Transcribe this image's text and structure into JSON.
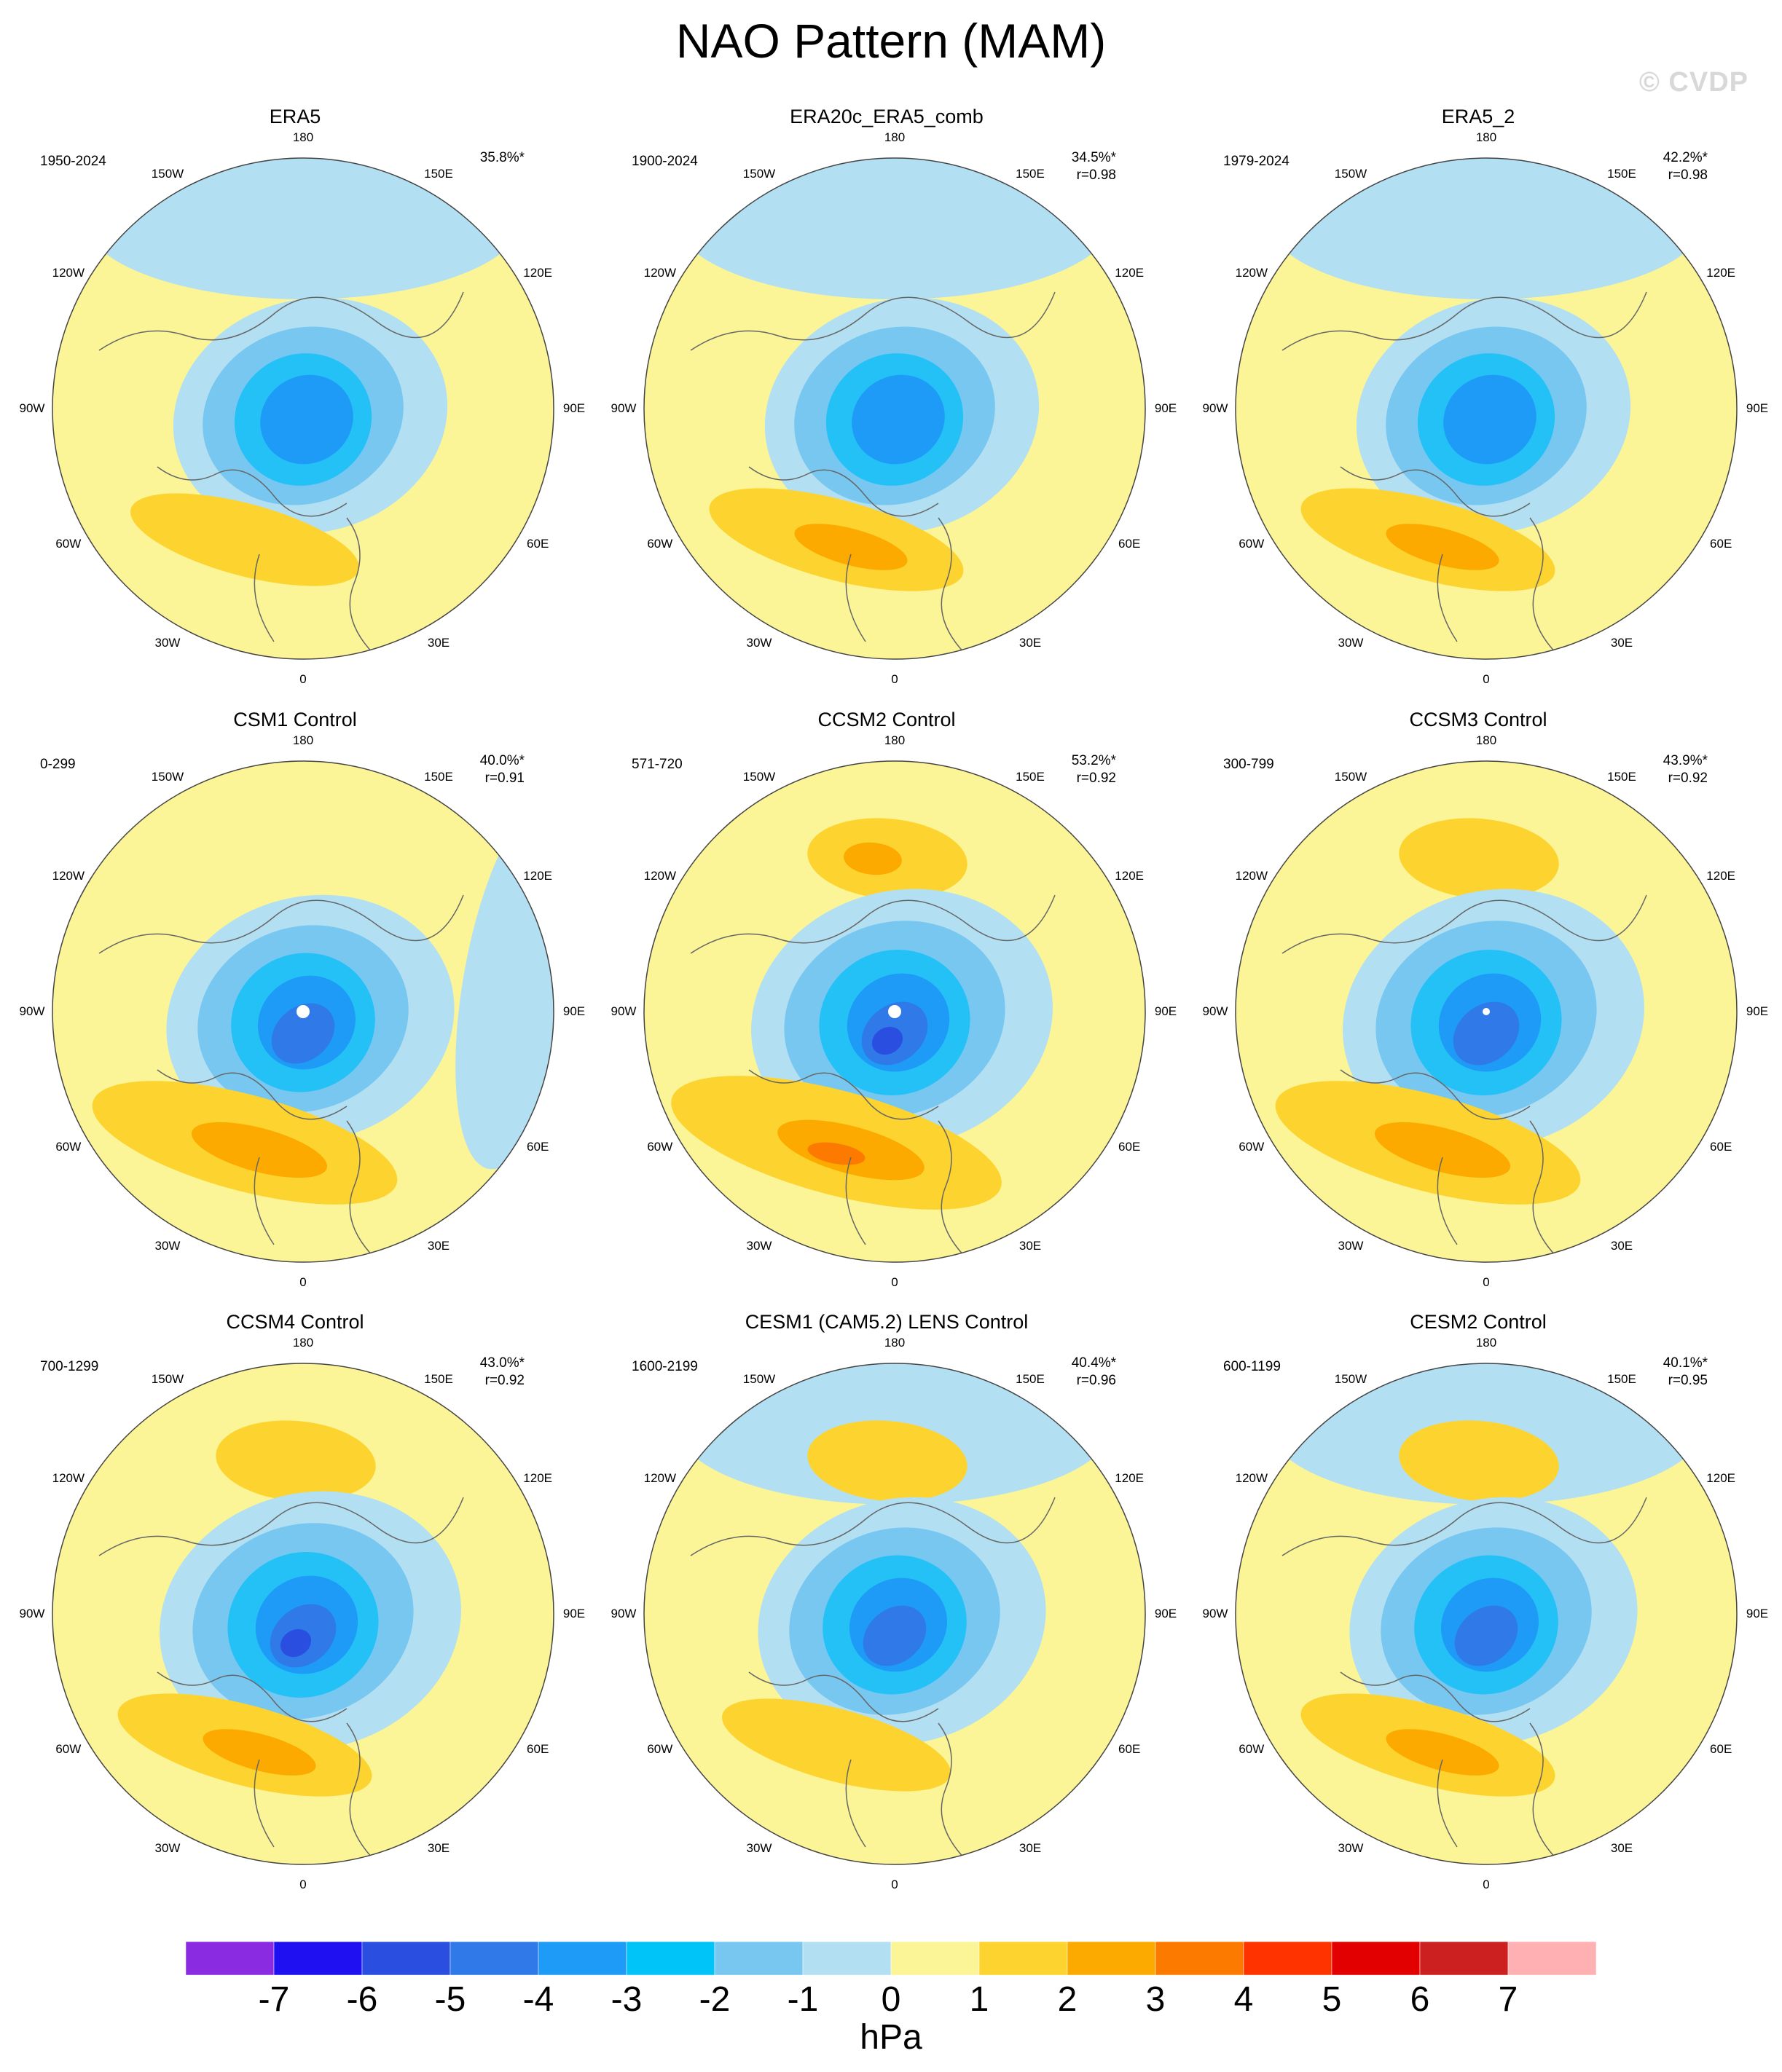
{
  "title": "NAO Pattern (MAM)",
  "watermark": "© CVDP",
  "lon_labels": [
    "180",
    "150E",
    "120E",
    "90E",
    "60E",
    "30E",
    "0",
    "30W",
    "60W",
    "90W",
    "120W",
    "150W"
  ],
  "colors": {
    "land_outline": "#666666",
    "pos1": "#fbf597",
    "pos2": "#fdd42f",
    "pos3": "#fdaa00",
    "pos4": "#fd7a00",
    "neg1": "#b3dff2",
    "neg2": "#77c7f1",
    "neg3": "#24c1f7",
    "neg4": "#1e9af7",
    "neg5": "#2f79e8",
    "neg6": "#2a4fe0"
  },
  "panels": [
    {
      "title": "ERA5",
      "period": "1950-2024",
      "stat": "35.8%*",
      "r": ""
    },
    {
      "title": "ERA20c_ERA5_comb",
      "period": "1900-2024",
      "stat": "34.5%*",
      "r": "r=0.98"
    },
    {
      "title": "ERA5_2",
      "period": "1979-2024",
      "stat": "42.2%*",
      "r": "r=0.98"
    },
    {
      "title": "CSM1 Control",
      "period": "0-299",
      "stat": "40.0%*",
      "r": "r=0.91"
    },
    {
      "title": "CCSM2 Control",
      "period": "571-720",
      "stat": "53.2%*",
      "r": "r=0.92"
    },
    {
      "title": "CCSM3 Control",
      "period": "300-799",
      "stat": "43.9%*",
      "r": "r=0.92"
    },
    {
      "title": "CCSM4 Control",
      "period": "700-1299",
      "stat": "43.0%*",
      "r": "r=0.92"
    },
    {
      "title": "CESM1 (CAM5.2) LENS Control",
      "period": "1600-2199",
      "stat": "40.4%*",
      "r": "r=0.96"
    },
    {
      "title": "CESM2 Control",
      "period": "600-1199",
      "stat": "40.1%*",
      "r": "r=0.95"
    }
  ],
  "colorbar": {
    "unit": "hPa",
    "labels": [
      "-7",
      "-6",
      "-5",
      "-4",
      "-3",
      "-2",
      "-1",
      "0",
      "1",
      "2",
      "3",
      "4",
      "5",
      "6",
      "7"
    ],
    "colors": [
      "#8a2be2",
      "#1e10f0",
      "#2a4fe0",
      "#2f79e8",
      "#1e9af7",
      "#00c3f8",
      "#77c7f1",
      "#b3dff2",
      "#fbf597",
      "#fdd42f",
      "#fdaa00",
      "#fd7a00",
      "#ff3300",
      "#e20000",
      "#cc1f1f",
      "#ffb0b3"
    ]
  }
}
